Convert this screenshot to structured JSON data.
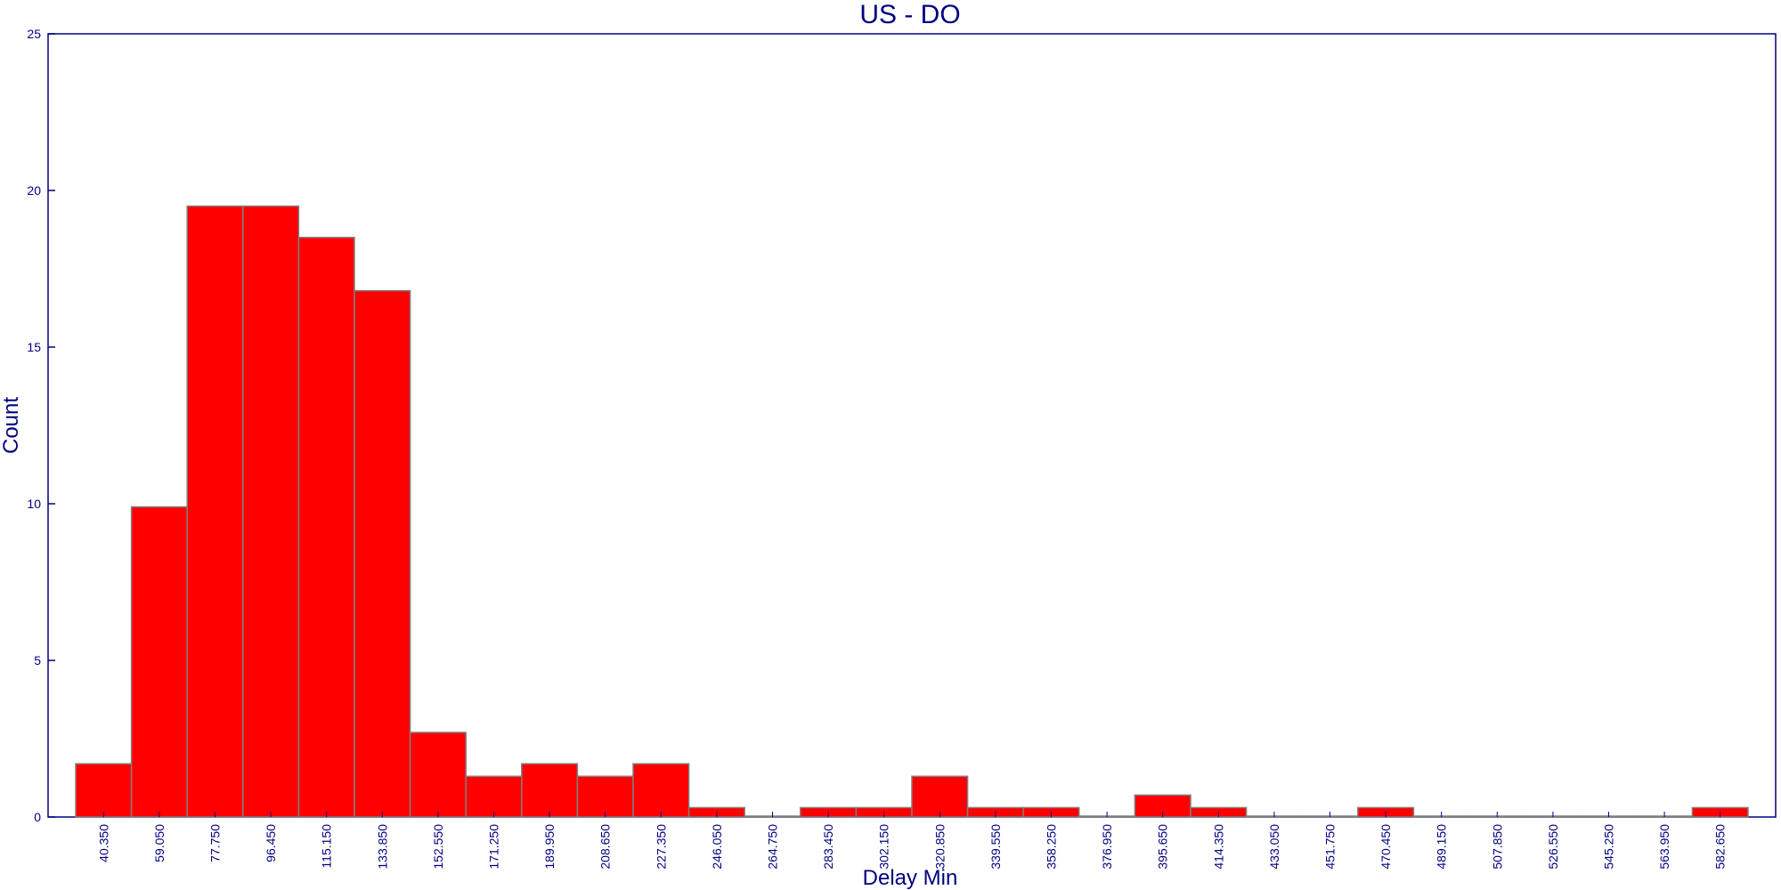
{
  "chart_data": {
    "type": "bar",
    "title": "US - DO",
    "xlabel": "Delay Min",
    "ylabel": "Count",
    "ylim": [
      0,
      25
    ],
    "y_ticks": [
      0,
      5,
      10,
      15,
      20,
      25
    ],
    "grid": false,
    "legend": "none",
    "colors": {
      "bar_fill": "#ff0000",
      "bar_stroke": "#7f7f7f",
      "axis": "#000080",
      "text": "#000080",
      "background": "#ffffff"
    },
    "categories": [
      "40.350",
      "59.050",
      "77.750",
      "96.450",
      "115.150",
      "133.850",
      "152.550",
      "171.250",
      "189.950",
      "208.650",
      "227.350",
      "246.050",
      "264.750",
      "283.450",
      "302.150",
      "320.850",
      "339.550",
      "358.250",
      "376.950",
      "395.650",
      "414.350",
      "433.050",
      "451.750",
      "470.450",
      "489.150",
      "507.850",
      "526.550",
      "545.250",
      "563.950",
      "582.650"
    ],
    "values": [
      1.7,
      9.9,
      19.5,
      19.5,
      18.5,
      16.8,
      2.7,
      1.3,
      1.7,
      1.3,
      1.7,
      0.3,
      0,
      0.3,
      0.3,
      1.3,
      0.3,
      0.3,
      0,
      0.7,
      0.3,
      0,
      0,
      0.3,
      0,
      0,
      0,
      0,
      0,
      0.3
    ]
  }
}
